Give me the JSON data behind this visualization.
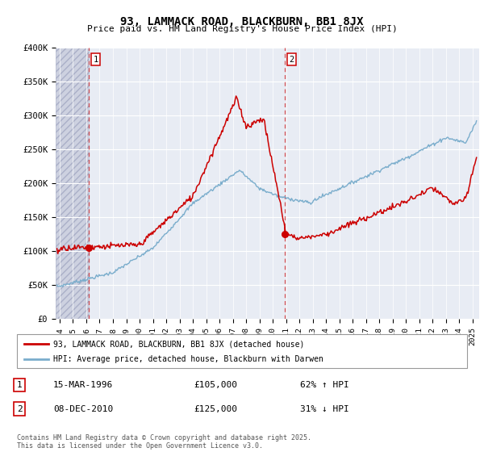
{
  "title": "93, LAMMACK ROAD, BLACKBURN, BB1 8JX",
  "subtitle": "Price paid vs. HM Land Registry's House Price Index (HPI)",
  "ylabel_ticks": [
    "£0",
    "£50K",
    "£100K",
    "£150K",
    "£200K",
    "£250K",
    "£300K",
    "£350K",
    "£400K"
  ],
  "ylim": [
    0,
    400000
  ],
  "xlim_start": 1993.7,
  "xlim_end": 2025.5,
  "sale1_date": 1996.21,
  "sale1_price": 105000,
  "sale2_date": 2010.93,
  "sale2_price": 125000,
  "legend_line1": "93, LAMMACK ROAD, BLACKBURN, BB1 8JX (detached house)",
  "legend_line2": "HPI: Average price, detached house, Blackburn with Darwen",
  "annotation1_date": "15-MAR-1996",
  "annotation1_price": "£105,000",
  "annotation1_pct": "62% ↑ HPI",
  "annotation2_date": "08-DEC-2010",
  "annotation2_price": "£125,000",
  "annotation2_pct": "31% ↓ HPI",
  "footer": "Contains HM Land Registry data © Crown copyright and database right 2025.\nThis data is licensed under the Open Government Licence v3.0.",
  "red_color": "#cc0000",
  "blue_color": "#7aadcc",
  "bg_color": "#e8ecf4",
  "hatch_bg_color": "#cdd1e0"
}
